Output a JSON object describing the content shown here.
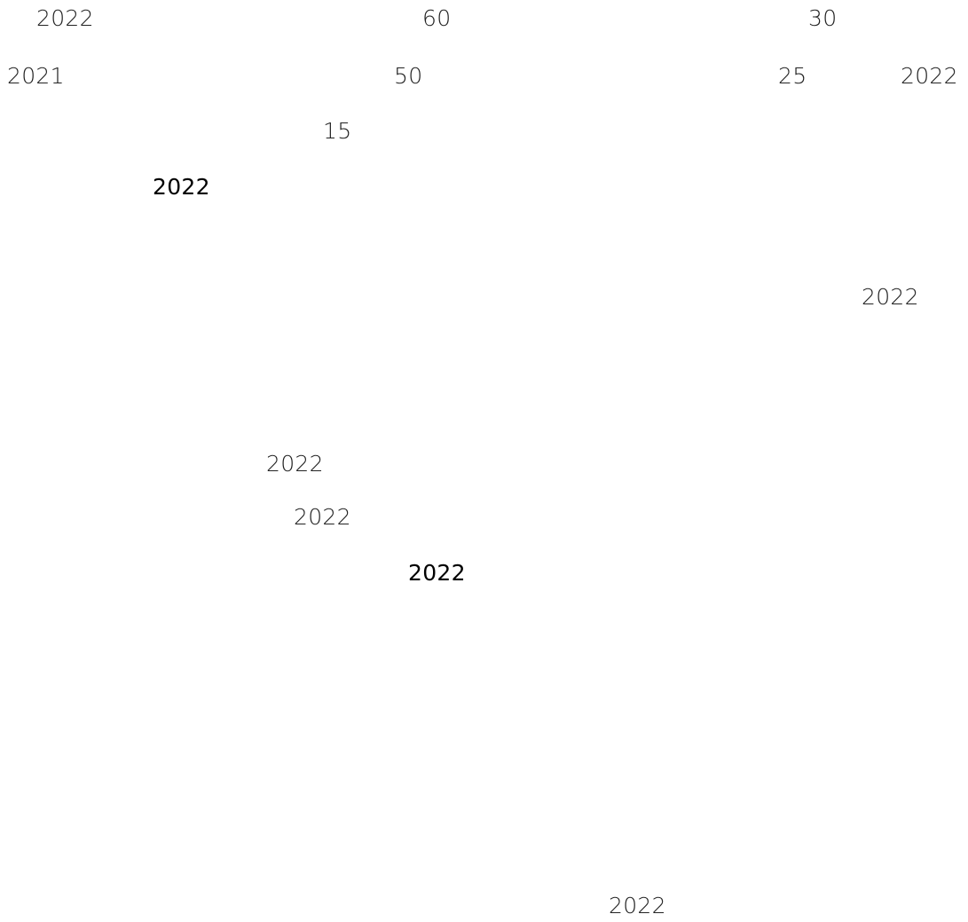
{
  "texts": [
    "2022",
    "60",
    "30",
    "2021",
    "50",
    "25",
    "2022",
    "15",
    "2022",
    "2022",
    "2022",
    "2022",
    "2022",
    "2022"
  ],
  "colors": {
    "background": "#ffffff",
    "text": "#222222",
    "text_emphasis": "#000000"
  }
}
